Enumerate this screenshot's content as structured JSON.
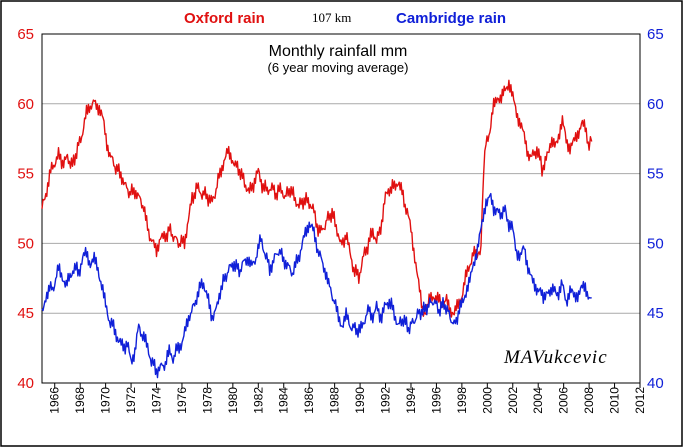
{
  "chart_data": {
    "type": "line",
    "title": "Monthly rainfall mm",
    "subtitle": "(6 year moving average)",
    "distance_label": "107 km",
    "author": "MAVukcevic",
    "xlim": [
      1965.0,
      2012.0
    ],
    "ylim_left": [
      40,
      65
    ],
    "ylim_right": [
      40,
      65
    ],
    "x_ticks": [
      "1966",
      "1968",
      "1970",
      "1972",
      "1974",
      "1976",
      "1978",
      "1980",
      "1982",
      "1984",
      "1986",
      "1988",
      "1990",
      "1992",
      "1994",
      "1996",
      "1998",
      "2000",
      "2002",
      "2004",
      "2006",
      "2008",
      "2010",
      "2012"
    ],
    "y_ticks_left": [
      "40",
      "45",
      "50",
      "55",
      "60",
      "65"
    ],
    "y_ticks_right": [
      "40",
      "45",
      "50",
      "55",
      "60",
      "65"
    ],
    "grid": true,
    "series": [
      {
        "name": "Oxford rain",
        "color": "#e01010",
        "axis": "left",
        "points": [
          [
            1965.0,
            52.5
          ],
          [
            1965.3,
            53.5
          ],
          [
            1965.6,
            55.0
          ],
          [
            1966.0,
            55.8
          ],
          [
            1966.3,
            56.3
          ],
          [
            1966.7,
            55.7
          ],
          [
            1967.0,
            56.1
          ],
          [
            1967.4,
            55.6
          ],
          [
            1967.8,
            56.8
          ],
          [
            1968.2,
            58.0
          ],
          [
            1968.5,
            59.3
          ],
          [
            1968.8,
            59.9
          ],
          [
            1969.2,
            60.1
          ],
          [
            1969.5,
            59.7
          ],
          [
            1969.8,
            58.8
          ],
          [
            1970.1,
            57.2
          ],
          [
            1970.4,
            56.2
          ],
          [
            1970.8,
            55.4
          ],
          [
            1971.2,
            55.0
          ],
          [
            1971.5,
            54.2
          ],
          [
            1971.9,
            53.6
          ],
          [
            1972.3,
            53.8
          ],
          [
            1972.6,
            53.3
          ],
          [
            1973.0,
            52.6
          ],
          [
            1973.3,
            51.0
          ],
          [
            1973.7,
            50.0
          ],
          [
            1974.0,
            49.5
          ],
          [
            1974.3,
            50.5
          ],
          [
            1974.6,
            50.3
          ],
          [
            1975.0,
            51.0
          ],
          [
            1975.4,
            50.4
          ],
          [
            1975.8,
            50.0
          ],
          [
            1976.2,
            50.2
          ],
          [
            1976.5,
            51.6
          ],
          [
            1976.8,
            53.2
          ],
          [
            1977.2,
            54.0
          ],
          [
            1977.5,
            53.6
          ],
          [
            1977.9,
            53.5
          ],
          [
            1978.3,
            52.9
          ],
          [
            1978.6,
            53.6
          ],
          [
            1979.0,
            55.1
          ],
          [
            1979.3,
            55.9
          ],
          [
            1979.6,
            56.5
          ],
          [
            1979.9,
            56.2
          ],
          [
            1980.2,
            55.6
          ],
          [
            1980.6,
            55.1
          ],
          [
            1981.0,
            54.2
          ],
          [
            1981.3,
            53.7
          ],
          [
            1981.7,
            54.4
          ],
          [
            1982.0,
            55.1
          ],
          [
            1982.3,
            54.2
          ],
          [
            1982.7,
            53.8
          ],
          [
            1983.0,
            54.1
          ],
          [
            1983.4,
            53.5
          ],
          [
            1983.8,
            54.0
          ],
          [
            1984.1,
            53.3
          ],
          [
            1984.5,
            53.9
          ],
          [
            1984.9,
            53.2
          ],
          [
            1985.2,
            52.7
          ],
          [
            1985.6,
            53.1
          ],
          [
            1986.0,
            53.0
          ],
          [
            1986.3,
            52.5
          ],
          [
            1986.7,
            51.0
          ],
          [
            1987.0,
            50.8
          ],
          [
            1987.4,
            51.7
          ],
          [
            1987.8,
            52.2
          ],
          [
            1988.2,
            51.0
          ],
          [
            1988.5,
            49.8
          ],
          [
            1988.9,
            50.6
          ],
          [
            1989.2,
            49.3
          ],
          [
            1989.5,
            48.2
          ],
          [
            1989.9,
            47.6
          ],
          [
            1990.2,
            48.9
          ],
          [
            1990.6,
            49.8
          ],
          [
            1991.0,
            51.0
          ],
          [
            1991.3,
            50.1
          ],
          [
            1991.7,
            51.5
          ],
          [
            1992.0,
            53.3
          ],
          [
            1992.3,
            53.9
          ],
          [
            1992.7,
            54.1
          ],
          [
            1993.0,
            54.5
          ],
          [
            1993.3,
            53.6
          ],
          [
            1993.7,
            52.2
          ],
          [
            1994.0,
            51.0
          ],
          [
            1994.3,
            49.1
          ],
          [
            1994.6,
            47.0
          ],
          [
            1994.9,
            45.3
          ],
          [
            1995.2,
            45.1
          ],
          [
            1995.5,
            46.0
          ],
          [
            1995.8,
            46.3
          ],
          [
            1996.1,
            46.0
          ],
          [
            1996.4,
            45.6
          ],
          [
            1996.8,
            45.9
          ],
          [
            1997.1,
            45.3
          ],
          [
            1997.4,
            44.9
          ],
          [
            1997.7,
            45.6
          ],
          [
            1998.0,
            46.3
          ],
          [
            1998.3,
            47.5
          ],
          [
            1998.6,
            48.4
          ],
          [
            1998.9,
            49.5
          ],
          [
            1999.2,
            48.9
          ],
          [
            1999.5,
            49.8
          ],
          [
            1999.7,
            55.0
          ],
          [
            1999.9,
            57.5
          ],
          [
            2000.2,
            58.0
          ],
          [
            2000.5,
            59.8
          ],
          [
            2000.8,
            60.6
          ],
          [
            2001.1,
            60.3
          ],
          [
            2001.4,
            61.0
          ],
          [
            2001.7,
            61.6
          ],
          [
            2002.0,
            60.4
          ],
          [
            2002.3,
            59.4
          ],
          [
            2002.6,
            58.6
          ],
          [
            2002.9,
            57.6
          ],
          [
            2003.2,
            56.5
          ],
          [
            2003.5,
            56.2
          ],
          [
            2003.9,
            56.7
          ],
          [
            2004.2,
            55.8
          ],
          [
            2004.4,
            55.0
          ],
          [
            2004.7,
            56.6
          ],
          [
            2005.0,
            57.2
          ],
          [
            2005.3,
            56.9
          ],
          [
            2005.6,
            57.8
          ],
          [
            2005.9,
            58.7
          ],
          [
            2006.2,
            57.4
          ],
          [
            2006.5,
            56.9
          ],
          [
            2006.8,
            57.2
          ],
          [
            2007.1,
            57.9
          ],
          [
            2007.4,
            58.6
          ],
          [
            2007.7,
            58.2
          ],
          [
            2008.0,
            57.0
          ],
          [
            2008.2,
            57.3
          ]
        ]
      },
      {
        "name": "Cambridge rain",
        "color": "#1020d8",
        "axis": "right",
        "points": [
          [
            1965.0,
            44.9
          ],
          [
            1965.3,
            46.3
          ],
          [
            1965.6,
            46.7
          ],
          [
            1966.0,
            47.0
          ],
          [
            1966.3,
            48.2
          ],
          [
            1966.6,
            47.7
          ],
          [
            1966.9,
            46.9
          ],
          [
            1967.2,
            47.6
          ],
          [
            1967.5,
            48.3
          ],
          [
            1967.9,
            48.0
          ],
          [
            1968.2,
            48.9
          ],
          [
            1968.5,
            49.3
          ],
          [
            1968.8,
            48.6
          ],
          [
            1969.1,
            48.8
          ],
          [
            1969.4,
            48.2
          ],
          [
            1969.7,
            47.0
          ],
          [
            1970.0,
            45.5
          ],
          [
            1970.3,
            44.5
          ],
          [
            1970.7,
            43.9
          ],
          [
            1971.0,
            43.1
          ],
          [
            1971.3,
            42.6
          ],
          [
            1971.7,
            42.7
          ],
          [
            1972.0,
            41.6
          ],
          [
            1972.3,
            42.3
          ],
          [
            1972.6,
            44.0
          ],
          [
            1973.0,
            43.2
          ],
          [
            1973.3,
            42.6
          ],
          [
            1973.6,
            41.6
          ],
          [
            1974.0,
            40.9
          ],
          [
            1974.3,
            41.1
          ],
          [
            1974.7,
            41.4
          ],
          [
            1975.0,
            42.2
          ],
          [
            1975.3,
            41.8
          ],
          [
            1975.7,
            42.6
          ],
          [
            1976.0,
            42.9
          ],
          [
            1976.3,
            43.8
          ],
          [
            1976.6,
            44.9
          ],
          [
            1977.0,
            45.6
          ],
          [
            1977.3,
            46.7
          ],
          [
            1977.7,
            47.2
          ],
          [
            1978.0,
            46.2
          ],
          [
            1978.3,
            44.7
          ],
          [
            1978.7,
            45.2
          ],
          [
            1979.0,
            46.6
          ],
          [
            1979.4,
            47.6
          ],
          [
            1979.8,
            48.3
          ],
          [
            1980.1,
            48.6
          ],
          [
            1980.5,
            48.0
          ],
          [
            1980.9,
            48.7
          ],
          [
            1981.2,
            49.0
          ],
          [
            1981.5,
            48.3
          ],
          [
            1981.9,
            49.2
          ],
          [
            1982.2,
            50.3
          ],
          [
            1982.5,
            49.4
          ],
          [
            1982.9,
            48.2
          ],
          [
            1983.2,
            48.8
          ],
          [
            1983.6,
            49.5
          ],
          [
            1984.0,
            48.9
          ],
          [
            1984.3,
            48.4
          ],
          [
            1984.7,
            47.9
          ],
          [
            1985.0,
            48.6
          ],
          [
            1985.4,
            49.6
          ],
          [
            1985.7,
            50.8
          ],
          [
            1986.0,
            51.5
          ],
          [
            1986.3,
            50.9
          ],
          [
            1986.6,
            49.8
          ],
          [
            1987.0,
            48.7
          ],
          [
            1987.3,
            48.0
          ],
          [
            1987.6,
            46.8
          ],
          [
            1988.0,
            45.8
          ],
          [
            1988.3,
            44.6
          ],
          [
            1988.6,
            44.2
          ],
          [
            1988.9,
            44.8
          ],
          [
            1989.2,
            44.1
          ],
          [
            1989.6,
            43.9
          ],
          [
            1990.0,
            43.7
          ],
          [
            1990.3,
            44.4
          ],
          [
            1990.7,
            45.3
          ],
          [
            1991.0,
            44.8
          ],
          [
            1991.3,
            45.4
          ],
          [
            1991.7,
            44.6
          ],
          [
            1992.0,
            45.6
          ],
          [
            1992.3,
            45.9
          ],
          [
            1992.7,
            45.0
          ],
          [
            1993.0,
            44.1
          ],
          [
            1993.4,
            44.6
          ],
          [
            1993.8,
            43.9
          ],
          [
            1994.2,
            44.4
          ],
          [
            1994.6,
            45.0
          ],
          [
            1995.0,
            45.2
          ],
          [
            1995.4,
            45.6
          ],
          [
            1995.8,
            45.9
          ],
          [
            1996.2,
            45.2
          ],
          [
            1996.6,
            45.7
          ],
          [
            1997.0,
            44.9
          ],
          [
            1997.4,
            44.1
          ],
          [
            1997.8,
            45.2
          ],
          [
            1998.1,
            45.8
          ],
          [
            1998.4,
            46.9
          ],
          [
            1998.7,
            47.5
          ],
          [
            1999.0,
            48.8
          ],
          [
            1999.3,
            50.1
          ],
          [
            1999.6,
            51.3
          ],
          [
            1999.9,
            53.1
          ],
          [
            2000.2,
            53.4
          ],
          [
            2000.5,
            52.3
          ],
          [
            2000.8,
            52.7
          ],
          [
            2001.1,
            51.6
          ],
          [
            2001.4,
            52.8
          ],
          [
            2001.7,
            51.2
          ],
          [
            2002.0,
            51.0
          ],
          [
            2002.3,
            49.5
          ],
          [
            2002.6,
            48.9
          ],
          [
            2002.9,
            49.8
          ],
          [
            2003.2,
            48.3
          ],
          [
            2003.5,
            47.3
          ],
          [
            2003.8,
            46.9
          ],
          [
            2004.1,
            46.7
          ],
          [
            2004.4,
            45.9
          ],
          [
            2004.7,
            46.8
          ],
          [
            2005.0,
            46.3
          ],
          [
            2005.3,
            46.8
          ],
          [
            2005.6,
            46.4
          ],
          [
            2005.9,
            47.0
          ],
          [
            2006.2,
            45.9
          ],
          [
            2006.5,
            46.6
          ],
          [
            2006.8,
            46.2
          ],
          [
            2007.1,
            46.4
          ],
          [
            2007.4,
            46.7
          ],
          [
            2007.7,
            46.9
          ],
          [
            2008.0,
            46.2
          ],
          [
            2008.2,
            46.1
          ]
        ]
      }
    ]
  }
}
